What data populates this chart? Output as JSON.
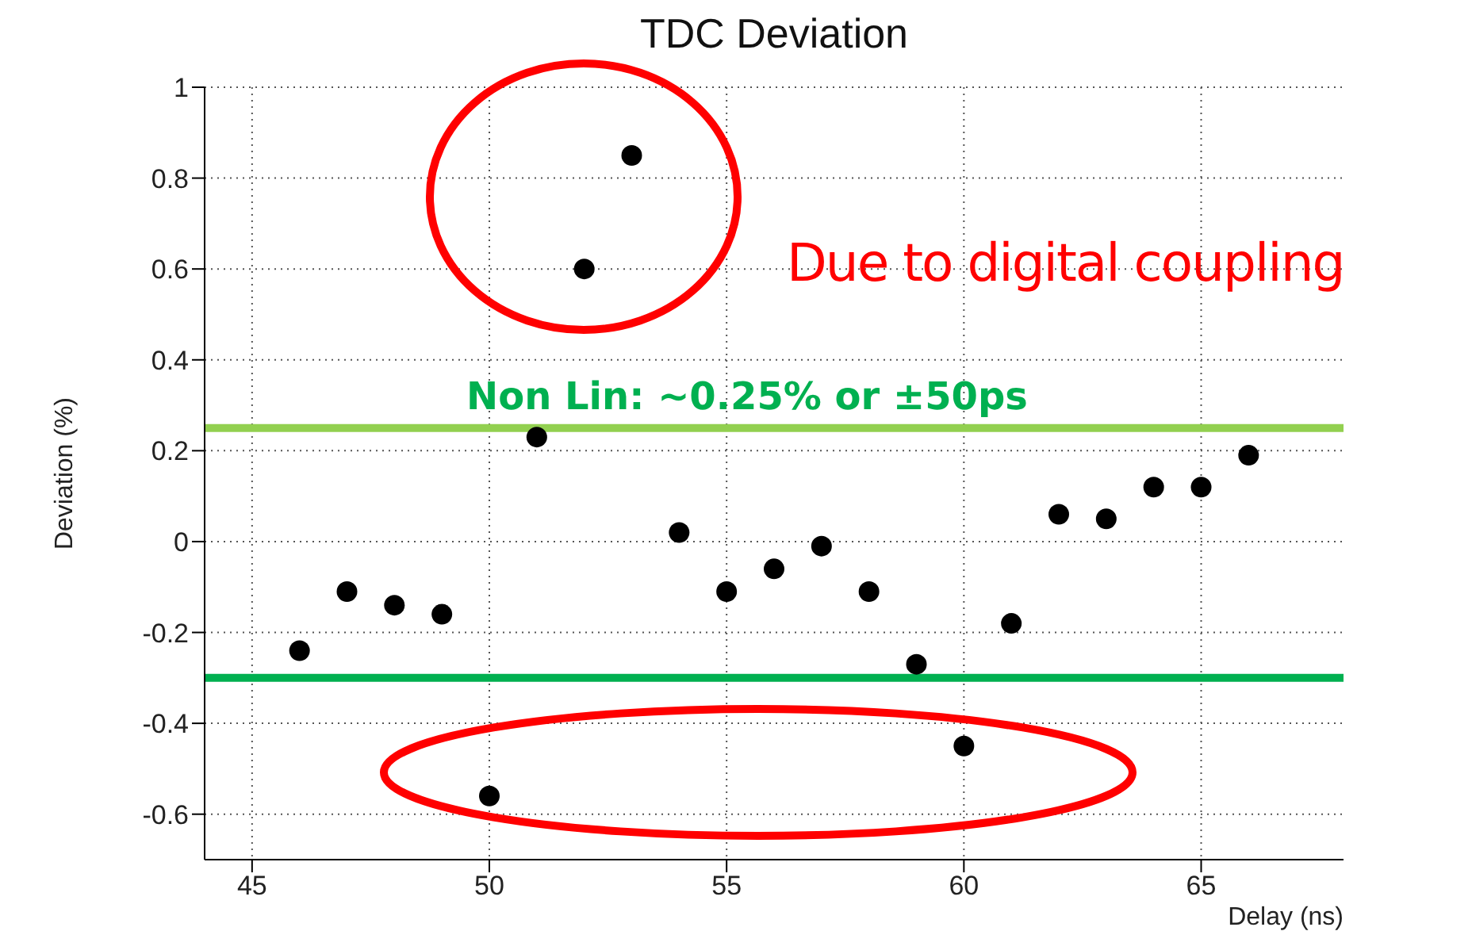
{
  "chart_data": {
    "type": "scatter",
    "title": "TDC Deviation",
    "xlabel": "Delay (ns)",
    "ylabel": "Deviation (%)",
    "x": [
      46,
      47,
      48,
      49,
      50,
      51,
      52,
      53,
      54,
      55,
      56,
      57,
      58,
      59,
      60,
      61,
      62,
      63,
      64,
      65,
      66
    ],
    "series": [
      {
        "color": "#000000",
        "values": [
          -0.24,
          -0.11,
          -0.14,
          -0.16,
          -0.56,
          0.23,
          0.6,
          0.85,
          0.02,
          -0.11,
          -0.06,
          -0.01,
          -0.11,
          -0.27,
          -0.45,
          -0.18,
          0.06,
          0.05,
          0.12,
          0.12,
          0.19
        ]
      }
    ],
    "xlim": [
      44,
      68
    ],
    "xticks": [
      45,
      50,
      55,
      60,
      65
    ],
    "ylim": [
      -0.7,
      1
    ],
    "yticks": [
      -0.6,
      -0.4,
      -0.2,
      0,
      0.2,
      0.4,
      0.6,
      0.8,
      1
    ],
    "grid": true,
    "marker": "circle",
    "ref_lines": [
      {
        "axis": "y",
        "value": 0.25,
        "label": "Non Lin: ~0.25% or ±50ps",
        "color": "#92d050"
      },
      {
        "axis": "y",
        "value": -0.3,
        "color": "#00b050"
      }
    ],
    "annotations": [
      "Due to digital coupling"
    ]
  }
}
